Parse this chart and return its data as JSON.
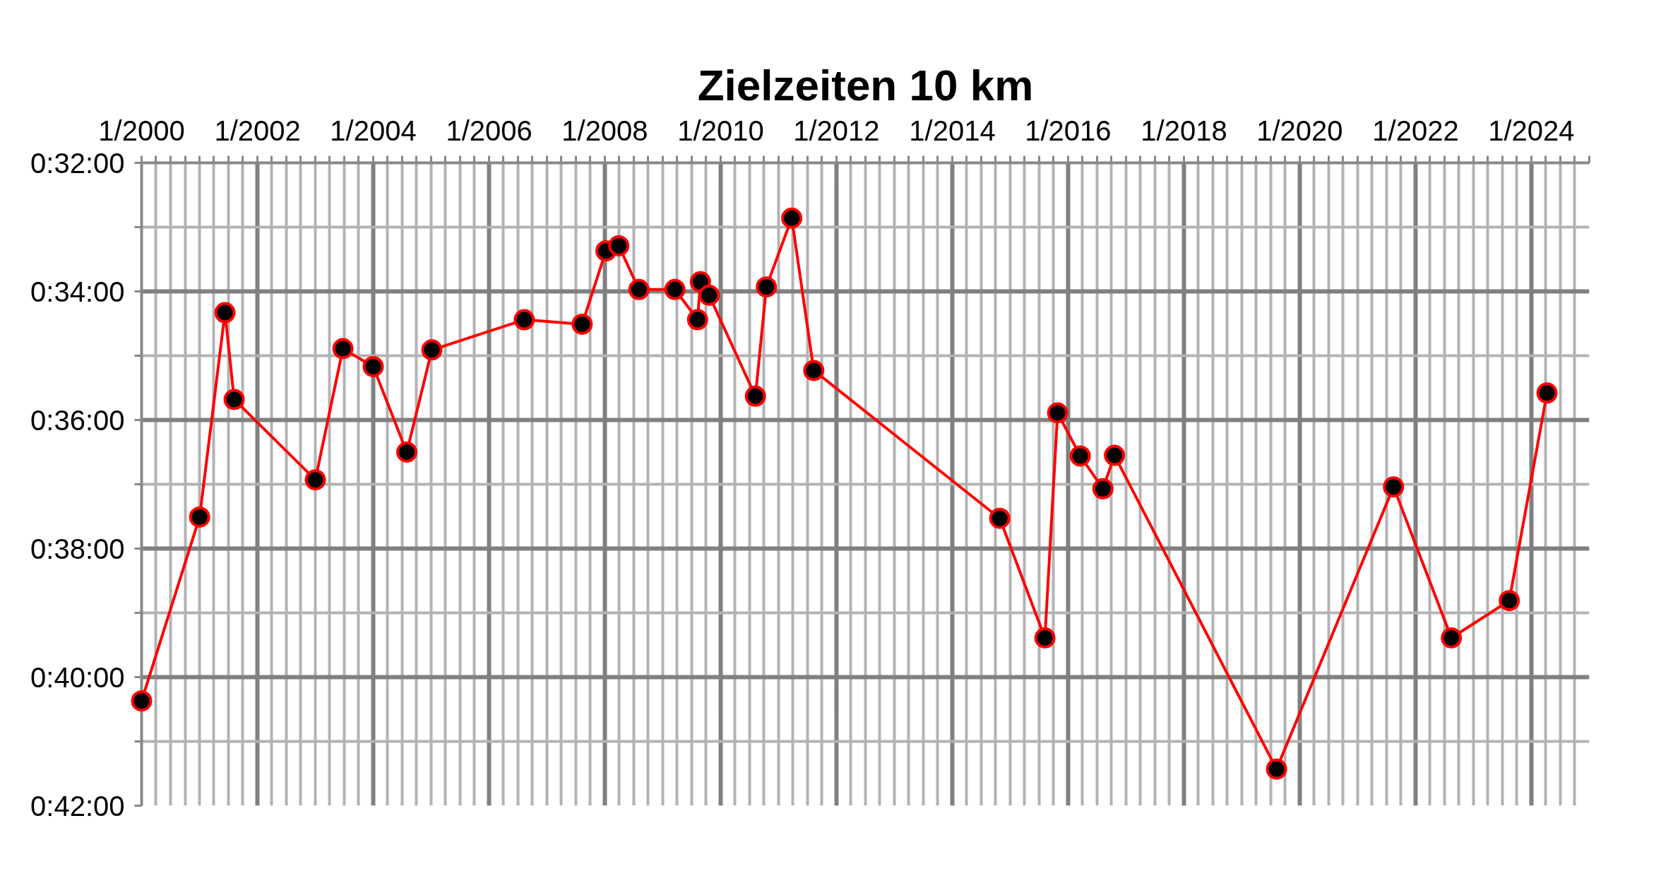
{
  "chart_data": {
    "type": "line",
    "title": "Zielzeiten 10 km",
    "x": [
      "2000-01-01",
      "2001-01-01",
      "2001-06-10",
      "2001-08-07",
      "2003-01-01",
      "2003-06-24",
      "2004-01-01",
      "2004-07-31",
      "2005-01-05",
      "2006-08-11",
      "2007-08-11",
      "2008-01-08",
      "2008-03-29",
      "2008-08-03",
      "2009-03-18",
      "2009-08-08",
      "2009-08-26",
      "2009-10-20",
      "2010-08-08",
      "2010-10-16",
      "2011-03-25",
      "2011-08-11",
      "2014-10-27",
      "2015-08-08",
      "2015-10-27",
      "2016-03-18",
      "2016-08-08",
      "2016-10-20",
      "2019-08-08",
      "2021-08-15",
      "2022-08-15",
      "2023-08-15",
      "2024-04-09"
    ],
    "series": [
      {
        "color": "#ff0000",
        "values": [
          40.37,
          37.51,
          34.33,
          35.68,
          36.93,
          34.89,
          35.17,
          36.5,
          34.91,
          34.44,
          34.51,
          33.37,
          33.29,
          33.97,
          33.97,
          34.44,
          33.85,
          34.06,
          35.63,
          33.93,
          32.86,
          35.23,
          37.53,
          39.39,
          35.89,
          36.56,
          37.07,
          36.55,
          41.43,
          37.04,
          39.39,
          38.81,
          35.58
        ]
      }
    ],
    "marker": "circle",
    "line_style": "solid",
    "grid": true,
    "xlim": [
      "2000-01-01",
      "2025-01-01"
    ],
    "ylim": [
      42,
      32
    ],
    "yticks": [
      {
        "value": 32,
        "label": "0:32:00"
      },
      {
        "value": 33,
        "label": null
      },
      {
        "value": 34,
        "label": "0:34:00"
      },
      {
        "value": 35,
        "label": null
      },
      {
        "value": 36,
        "label": "0:36:00"
      },
      {
        "value": 37,
        "label": null
      },
      {
        "value": 38,
        "label": "0:38:00"
      },
      {
        "value": 39,
        "label": null
      },
      {
        "value": 40,
        "label": "0:40:00"
      },
      {
        "value": 41,
        "label": null
      },
      {
        "value": 42,
        "label": "0:42:00"
      }
    ],
    "xticks": [
      {
        "value": "2000-01",
        "label": "1/2000"
      },
      {
        "value": "2000-04",
        "label": null
      },
      {
        "value": "2000-07",
        "label": null
      },
      {
        "value": "2000-10",
        "label": null
      },
      {
        "value": "2001-01",
        "label": null
      },
      {
        "value": "2001-04",
        "label": null
      },
      {
        "value": "2001-07",
        "label": null
      },
      {
        "value": "2001-10",
        "label": null
      },
      {
        "value": "2002-01",
        "label": "1/2002"
      },
      {
        "value": "2002-04",
        "label": null
      },
      {
        "value": "2002-07",
        "label": null
      },
      {
        "value": "2002-10",
        "label": null
      },
      {
        "value": "2003-01",
        "label": null
      },
      {
        "value": "2003-04",
        "label": null
      },
      {
        "value": "2003-07",
        "label": null
      },
      {
        "value": "2003-10",
        "label": null
      },
      {
        "value": "2004-01",
        "label": "1/2004"
      },
      {
        "value": "2004-04",
        "label": null
      },
      {
        "value": "2004-07",
        "label": null
      },
      {
        "value": "2004-10",
        "label": null
      },
      {
        "value": "2005-01",
        "label": null
      },
      {
        "value": "2005-04",
        "label": null
      },
      {
        "value": "2005-07",
        "label": null
      },
      {
        "value": "2005-10",
        "label": null
      },
      {
        "value": "2006-01",
        "label": "1/2006"
      },
      {
        "value": "2006-04",
        "label": null
      },
      {
        "value": "2006-07",
        "label": null
      },
      {
        "value": "2006-10",
        "label": null
      },
      {
        "value": "2007-01",
        "label": null
      },
      {
        "value": "2007-04",
        "label": null
      },
      {
        "value": "2007-07",
        "label": null
      },
      {
        "value": "2007-10",
        "label": null
      },
      {
        "value": "2008-01",
        "label": "1/2008"
      },
      {
        "value": "2008-04",
        "label": null
      },
      {
        "value": "2008-07",
        "label": null
      },
      {
        "value": "2008-10",
        "label": null
      },
      {
        "value": "2009-01",
        "label": null
      },
      {
        "value": "2009-04",
        "label": null
      },
      {
        "value": "2009-07",
        "label": null
      },
      {
        "value": "2009-10",
        "label": null
      },
      {
        "value": "2010-01",
        "label": "1/2010"
      },
      {
        "value": "2010-04",
        "label": null
      },
      {
        "value": "2010-07",
        "label": null
      },
      {
        "value": "2010-10",
        "label": null
      },
      {
        "value": "2011-01",
        "label": null
      },
      {
        "value": "2011-04",
        "label": null
      },
      {
        "value": "2011-07",
        "label": null
      },
      {
        "value": "2011-10",
        "label": null
      },
      {
        "value": "2012-01",
        "label": "1/2012"
      },
      {
        "value": "2012-04",
        "label": null
      },
      {
        "value": "2012-07",
        "label": null
      },
      {
        "value": "2012-10",
        "label": null
      },
      {
        "value": "2013-01",
        "label": null
      },
      {
        "value": "2013-04",
        "label": null
      },
      {
        "value": "2013-07",
        "label": null
      },
      {
        "value": "2013-10",
        "label": null
      },
      {
        "value": "2014-01",
        "label": "1/2014"
      },
      {
        "value": "2014-04",
        "label": null
      },
      {
        "value": "2014-07",
        "label": null
      },
      {
        "value": "2014-10",
        "label": null
      },
      {
        "value": "2015-01",
        "label": null
      },
      {
        "value": "2015-04",
        "label": null
      },
      {
        "value": "2015-07",
        "label": null
      },
      {
        "value": "2015-10",
        "label": null
      },
      {
        "value": "2016-01",
        "label": "1/2016"
      },
      {
        "value": "2016-04",
        "label": null
      },
      {
        "value": "2016-07",
        "label": null
      },
      {
        "value": "2016-10",
        "label": null
      },
      {
        "value": "2017-01",
        "label": null
      },
      {
        "value": "2017-04",
        "label": null
      },
      {
        "value": "2017-07",
        "label": null
      },
      {
        "value": "2017-10",
        "label": null
      },
      {
        "value": "2018-01",
        "label": "1/2018"
      },
      {
        "value": "2018-04",
        "label": null
      },
      {
        "value": "2018-07",
        "label": null
      },
      {
        "value": "2018-10",
        "label": null
      },
      {
        "value": "2019-01",
        "label": null
      },
      {
        "value": "2019-04",
        "label": null
      },
      {
        "value": "2019-07",
        "label": null
      },
      {
        "value": "2019-10",
        "label": null
      },
      {
        "value": "2020-01",
        "label": "1/2020"
      },
      {
        "value": "2020-04",
        "label": null
      },
      {
        "value": "2020-07",
        "label": null
      },
      {
        "value": "2020-10",
        "label": null
      },
      {
        "value": "2021-01",
        "label": null
      },
      {
        "value": "2021-04",
        "label": null
      },
      {
        "value": "2021-07",
        "label": null
      },
      {
        "value": "2021-10",
        "label": null
      },
      {
        "value": "2022-01",
        "label": "1/2022"
      },
      {
        "value": "2022-04",
        "label": null
      },
      {
        "value": "2022-07",
        "label": null
      },
      {
        "value": "2022-10",
        "label": null
      },
      {
        "value": "2023-01",
        "label": null
      },
      {
        "value": "2023-04",
        "label": null
      },
      {
        "value": "2023-07",
        "label": null
      },
      {
        "value": "2023-10",
        "label": null
      },
      {
        "value": "2024-01",
        "label": "1/2024"
      },
      {
        "value": "2024-04",
        "label": null
      },
      {
        "value": "2024-07",
        "label": null
      },
      {
        "value": "2024-10",
        "label": null
      },
      {
        "value": "2025-01",
        "label": null
      }
    ]
  }
}
